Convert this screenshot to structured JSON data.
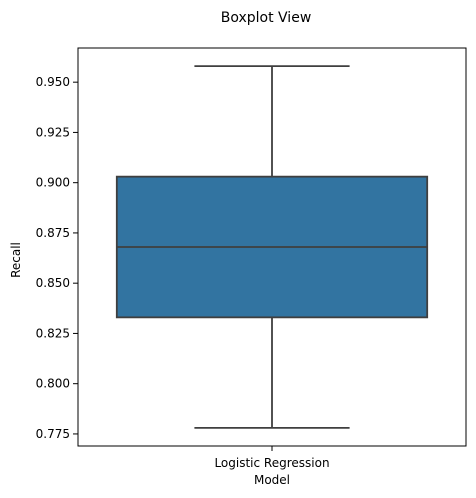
{
  "chart_data": {
    "type": "box",
    "title": "Boxplot View",
    "xlabel": "Model",
    "ylabel": "Recall",
    "categories": [
      "Logistic Regression"
    ],
    "boxes": [
      {
        "category": "Logistic Regression",
        "whisker_low": 0.778,
        "q1": 0.833,
        "median": 0.868,
        "q3": 0.903,
        "whisker_high": 0.958
      }
    ],
    "ylim": [
      0.769,
      0.967
    ],
    "yticks": [
      "0.775",
      "0.800",
      "0.825",
      "0.850",
      "0.875",
      "0.900",
      "0.925",
      "0.950"
    ],
    "grid": false,
    "legend": "none",
    "colors": {
      "box_fill": "#3274a1",
      "lines": "#3f3f3f",
      "frame": "#000000"
    }
  }
}
